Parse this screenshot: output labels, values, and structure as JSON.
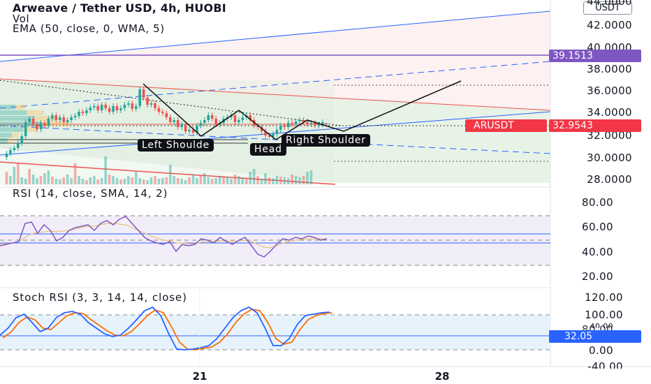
{
  "header": {
    "title": "Arweave / Tether USD, 4h, HUOBI",
    "volume_label": "Vol",
    "ema_label": "EMA (50, close, 0, WMA, 5)",
    "currency_button": "USDT"
  },
  "price_axis": {
    "partial_top_tick": "44.0000",
    "ticks": [
      "42.0000",
      "40.0000",
      "38.0000",
      "36.0000",
      "34.0000",
      "32.0000",
      "30.0000",
      "28.0000"
    ],
    "horizontal_level_tag": "39.1513",
    "horizontal_level_color": "#7e57c2",
    "symbol_tag": "ARUSDT",
    "last_price_tag": "32.9543",
    "last_price_color": "#f23645"
  },
  "pattern_labels": {
    "left_shoulder": "Left Shoulde",
    "head": "Head",
    "right_shoulder": "Right Shoulder"
  },
  "rsi_pane": {
    "title": "RSI (14, close, SMA, 14, 2)",
    "ticks": [
      "80.00",
      "60.00",
      "40.00",
      "20.00"
    ],
    "line_color": "#7e57c2",
    "ma_color": "#e8c27b"
  },
  "stoch_pane": {
    "title": "Stoch RSI (3, 3, 14, 14, close)",
    "ticks": [
      "120.00",
      "100.00",
      "80.00",
      "0.00",
      "-40.00"
    ],
    "partial_tick": "40.00",
    "value_tag": "32.05",
    "value_tag_color": "#2962ff",
    "k_color": "#2962ff",
    "d_color": "#ff6d00"
  },
  "time_axis": {
    "ticks": [
      "21",
      "28"
    ]
  },
  "colors": {
    "up_candle": "#26a69a",
    "down_candle": "#ef5350",
    "channel_fill": "#e8f3e8",
    "upper_fill": "#fdeeee",
    "trend_line_blue": "#2962ff"
  }
}
